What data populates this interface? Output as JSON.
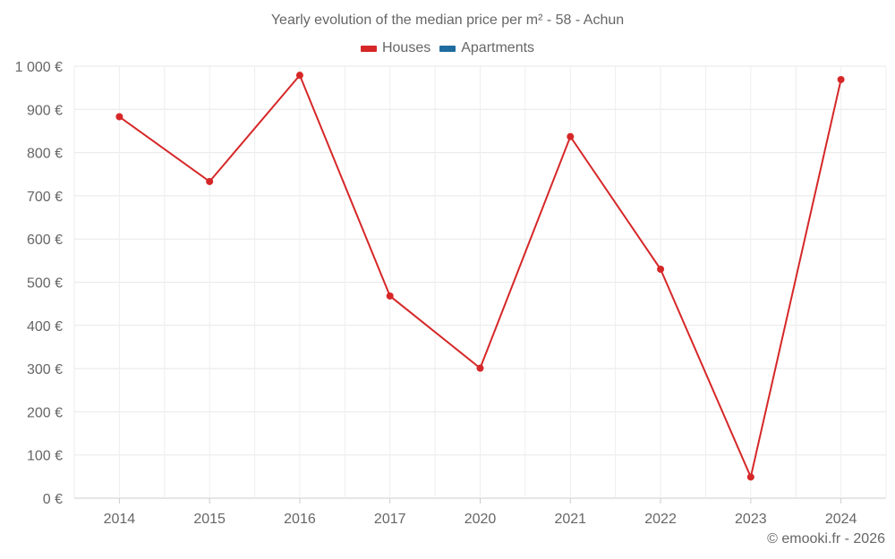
{
  "chart_data": {
    "type": "line",
    "title": "Yearly evolution of the median price per m² - 58 - Achun",
    "categories": [
      "2014",
      "2015",
      "2016",
      "2017",
      "2020",
      "2021",
      "2022",
      "2023",
      "2024"
    ],
    "series": [
      {
        "name": "Houses",
        "color": "#d62728",
        "values": [
          883,
          733,
          979,
          468,
          301,
          837,
          530,
          49,
          969
        ]
      },
      {
        "name": "Apartments",
        "color": "#1f6c9e",
        "values": []
      }
    ],
    "xlabel": "",
    "ylabel": "",
    "ylim": [
      0,
      1000
    ],
    "yticks": [
      0,
      100,
      200,
      300,
      400,
      500,
      600,
      700,
      800,
      900,
      1000
    ],
    "ytick_labels": [
      "0 €",
      "100 €",
      "200 €",
      "300 €",
      "400 €",
      "500 €",
      "600 €",
      "700 €",
      "800 €",
      "900 €",
      "1 000 €"
    ],
    "grid": true,
    "legend_position": "top"
  },
  "legend": [
    {
      "label": "Houses",
      "color": "#d62728"
    },
    {
      "label": "Apartments",
      "color": "#1f6c9e"
    }
  ],
  "credit": "© emooki.fr - 2026"
}
